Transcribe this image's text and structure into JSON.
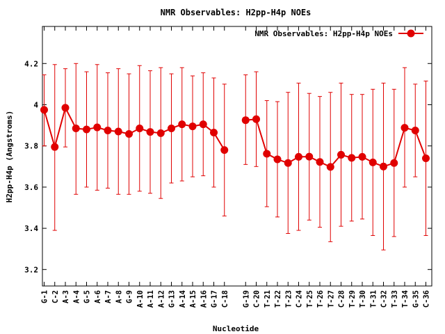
{
  "chart_data": {
    "type": "line",
    "title": "NMR Observables: H2pp-H4p NOEs",
    "xlabel": "Nucleotide",
    "ylabel": "H2pp-H4p (Angstroms)",
    "ylim": [
      3.12,
      4.38
    ],
    "yticks": [
      3.2,
      3.4,
      3.6,
      3.8,
      4,
      4.2
    ],
    "ytick_labels": [
      "3.2",
      "3.4",
      "3.6",
      "3.8",
      "4",
      "4.2"
    ],
    "grid": false,
    "legend_position": "top-right",
    "color": "#e00000",
    "series": [
      {
        "name": "NMR Observables: H2pp-H4p NOEs",
        "points": [
          {
            "pos": 1,
            "label": "G-1",
            "value": 3.975,
            "low": 3.8,
            "high": 4.145
          },
          {
            "pos": 2,
            "label": "C-2",
            "value": 3.795,
            "low": 3.39,
            "high": 4.195
          },
          {
            "pos": 3,
            "label": "A-3",
            "value": 3.985,
            "low": 3.795,
            "high": 4.175
          },
          {
            "pos": 4,
            "label": "A-4",
            "value": 3.885,
            "low": 3.565,
            "high": 4.2
          },
          {
            "pos": 5,
            "label": "G-5",
            "value": 3.88,
            "low": 3.6,
            "high": 4.16
          },
          {
            "pos": 6,
            "label": "A-6",
            "value": 3.89,
            "low": 3.585,
            "high": 4.195
          },
          {
            "pos": 7,
            "label": "A-7",
            "value": 3.875,
            "low": 3.595,
            "high": 4.155
          },
          {
            "pos": 8,
            "label": "A-8",
            "value": 3.87,
            "low": 3.565,
            "high": 4.175
          },
          {
            "pos": 9,
            "label": "G-9",
            "value": 3.858,
            "low": 3.565,
            "high": 4.15
          },
          {
            "pos": 10,
            "label": "A-10",
            "value": 3.885,
            "low": 3.58,
            "high": 4.19
          },
          {
            "pos": 11,
            "label": "A-11",
            "value": 3.868,
            "low": 3.57,
            "high": 4.165
          },
          {
            "pos": 12,
            "label": "A-12",
            "value": 3.862,
            "low": 3.545,
            "high": 4.18
          },
          {
            "pos": 13,
            "label": "G-13",
            "value": 3.885,
            "low": 3.62,
            "high": 4.15
          },
          {
            "pos": 14,
            "label": "A-14",
            "value": 3.905,
            "low": 3.63,
            "high": 4.18
          },
          {
            "pos": 15,
            "label": "A-15",
            "value": 3.895,
            "low": 3.65,
            "high": 4.14
          },
          {
            "pos": 16,
            "label": "A-16",
            "value": 3.905,
            "low": 3.655,
            "high": 4.155
          },
          {
            "pos": 17,
            "label": "G-17",
            "value": 3.865,
            "low": 3.6,
            "high": 4.13
          },
          {
            "pos": 18,
            "label": "C-18",
            "value": 3.78,
            "low": 3.46,
            "high": 4.1
          },
          {
            "pos": 20,
            "label": "G-19",
            "value": 3.925,
            "low": 3.71,
            "high": 4.145
          },
          {
            "pos": 21,
            "label": "C-20",
            "value": 3.93,
            "low": 3.7,
            "high": 4.16
          },
          {
            "pos": 22,
            "label": "T-21",
            "value": 3.762,
            "low": 3.505,
            "high": 4.02
          },
          {
            "pos": 23,
            "label": "T-22",
            "value": 3.735,
            "low": 3.455,
            "high": 4.015
          },
          {
            "pos": 24,
            "label": "T-23",
            "value": 3.717,
            "low": 3.375,
            "high": 4.06
          },
          {
            "pos": 25,
            "label": "C-24",
            "value": 3.747,
            "low": 3.39,
            "high": 4.105
          },
          {
            "pos": 26,
            "label": "T-25",
            "value": 3.748,
            "low": 3.44,
            "high": 4.055
          },
          {
            "pos": 27,
            "label": "T-26",
            "value": 3.722,
            "low": 3.405,
            "high": 4.04
          },
          {
            "pos": 28,
            "label": "T-27",
            "value": 3.698,
            "low": 3.335,
            "high": 4.06
          },
          {
            "pos": 29,
            "label": "C-28",
            "value": 3.757,
            "low": 3.41,
            "high": 4.105
          },
          {
            "pos": 30,
            "label": "T-29",
            "value": 3.742,
            "low": 3.435,
            "high": 4.05
          },
          {
            "pos": 31,
            "label": "T-30",
            "value": 3.747,
            "low": 3.445,
            "high": 4.05
          },
          {
            "pos": 32,
            "label": "T-31",
            "value": 3.72,
            "low": 3.365,
            "high": 4.075
          },
          {
            "pos": 33,
            "label": "C-32",
            "value": 3.7,
            "low": 3.295,
            "high": 4.105
          },
          {
            "pos": 34,
            "label": "T-33",
            "value": 3.717,
            "low": 3.36,
            "high": 4.075
          },
          {
            "pos": 35,
            "label": "T-34",
            "value": 3.888,
            "low": 3.6,
            "high": 4.18
          },
          {
            "pos": 36,
            "label": "G-35",
            "value": 3.875,
            "low": 3.65,
            "high": 4.1
          },
          {
            "pos": 37,
            "label": "C-36",
            "value": 3.74,
            "low": 3.365,
            "high": 4.115
          }
        ]
      }
    ]
  }
}
